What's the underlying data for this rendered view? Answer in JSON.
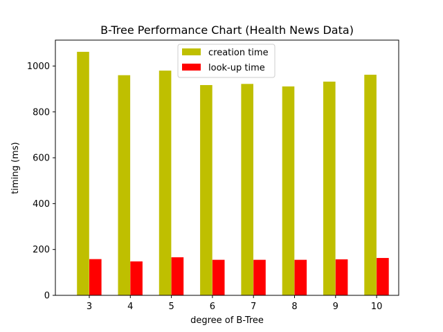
{
  "chart_data": {
    "type": "bar",
    "title": "B-Tree Performance Chart (Health News Data)",
    "xlabel": "degree of B-Tree",
    "ylabel": "timing (ms)",
    "categories": [
      "3",
      "4",
      "5",
      "6",
      "7",
      "8",
      "9",
      "10"
    ],
    "series": [
      {
        "name": "creation time",
        "color": "#bfbf00",
        "values": [
          1062,
          960,
          980,
          917,
          922,
          911,
          932,
          962
        ]
      },
      {
        "name": "look-up time",
        "color": "#ff0000",
        "values": [
          158,
          148,
          166,
          155,
          155,
          155,
          157,
          163
        ]
      }
    ],
    "ylim": [
      0,
      1113
    ],
    "yticks": [
      0,
      200,
      400,
      600,
      800,
      1000
    ],
    "grid": false,
    "legend_position": "upper-center"
  }
}
